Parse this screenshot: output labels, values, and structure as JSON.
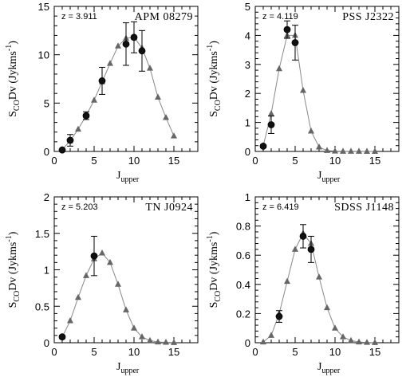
{
  "chart_data": [
    {
      "type": "line",
      "redshift": "z = 3.911",
      "object": "APM 08279",
      "xlabel": "J",
      "xlabel_sub": "upper",
      "ylabel": "S",
      "ylabel_sub": "CO",
      "ylabel_rest": "Dv (Jykms",
      "ylabel_sup": "-1",
      "ylabel_close": ")",
      "xlim": [
        0,
        18
      ],
      "ylim": [
        0,
        15
      ],
      "xticks": [
        0,
        5,
        10,
        15
      ],
      "xtick_labels": [
        "0",
        "5",
        "10",
        "15"
      ],
      "yticks": [
        0,
        5,
        10,
        15
      ],
      "ytick_labels": [
        "0",
        "5",
        "10",
        "15"
      ],
      "series": [
        {
          "kind": "model",
          "x": [
            1,
            2,
            3,
            4,
            5,
            6,
            7,
            8,
            9,
            10,
            11,
            12,
            13,
            14,
            15
          ],
          "y": [
            0.2,
            1.1,
            2.3,
            3.7,
            5.3,
            7.2,
            9.1,
            10.9,
            11.7,
            11.8,
            10.7,
            8.6,
            5.6,
            3.5,
            1.6
          ]
        },
        {
          "kind": "observed",
          "x": [
            1,
            2,
            4,
            6,
            9,
            10,
            11
          ],
          "y": [
            0.15,
            1.15,
            3.7,
            7.3,
            11.1,
            11.8,
            10.4
          ],
          "err": [
            0,
            0.6,
            0.4,
            1.4,
            2.2,
            1.6,
            2.1
          ]
        }
      ]
    },
    {
      "type": "line",
      "redshift": "z = 4.119",
      "object": "PSS J2322",
      "xlabel": "J",
      "xlabel_sub": "upper",
      "ylabel": "S",
      "ylabel_sub": "CO",
      "ylabel_rest": "Dv (Jykms",
      "ylabel_sup": "-1",
      "ylabel_close": ")",
      "xlim": [
        0,
        18
      ],
      "ylim": [
        0,
        5
      ],
      "xticks": [
        0,
        5,
        10,
        15
      ],
      "xtick_labels": [
        "0",
        "5",
        "10",
        "15"
      ],
      "yticks": [
        0,
        1,
        2,
        3,
        4,
        5
      ],
      "ytick_labels": [
        "0",
        "1",
        "2",
        "3",
        "4",
        "5"
      ],
      "series": [
        {
          "kind": "model",
          "x": [
            1,
            2,
            3,
            4,
            5,
            6,
            7,
            8,
            9,
            10,
            11,
            12,
            13,
            14,
            15
          ],
          "y": [
            0.2,
            1.3,
            2.85,
            4.0,
            4.0,
            2.1,
            0.7,
            0.15,
            0.03,
            0.01,
            0.005,
            0.003,
            0.002,
            0.001,
            0.001
          ]
        },
        {
          "kind": "observed",
          "x": [
            1,
            2,
            4,
            5
          ],
          "y": [
            0.18,
            0.92,
            4.2,
            3.75
          ],
          "err": [
            0.05,
            0.3,
            0.3,
            0.6
          ]
        }
      ]
    },
    {
      "type": "line",
      "redshift": "z = 5.203",
      "object": "TN J0924",
      "xlabel": "J",
      "xlabel_sub": "upper",
      "ylabel": "S",
      "ylabel_sub": "CO",
      "ylabel_rest": "Dv (Jykms",
      "ylabel_sup": "-1",
      "ylabel_close": ")",
      "xlim": [
        0,
        18
      ],
      "ylim": [
        0,
        2
      ],
      "xticks": [
        0,
        5,
        10,
        15
      ],
      "xtick_labels": [
        "0",
        "5",
        "10",
        "15"
      ],
      "yticks": [
        0,
        0.5,
        1,
        1.5,
        2
      ],
      "ytick_labels": [
        "0",
        "0.5",
        "1",
        "1.5",
        "2"
      ],
      "series": [
        {
          "kind": "model",
          "x": [
            1,
            2,
            3,
            4,
            5,
            6,
            7,
            8,
            9,
            10,
            11,
            12,
            13,
            14,
            15
          ],
          "y": [
            0.08,
            0.3,
            0.62,
            0.92,
            1.15,
            1.23,
            1.1,
            0.8,
            0.45,
            0.2,
            0.08,
            0.03,
            0.01,
            0.005,
            0.002
          ]
        },
        {
          "kind": "observed",
          "x": [
            1,
            5
          ],
          "y": [
            0.08,
            1.19
          ],
          "err": [
            0.02,
            0.27
          ]
        }
      ]
    },
    {
      "type": "line",
      "redshift": "z = 6.419",
      "object": "SDSS J1148",
      "xlabel": "J",
      "xlabel_sub": "upper",
      "ylabel": "S",
      "ylabel_sub": "CO",
      "ylabel_rest": "Dv (Jykms",
      "ylabel_sup": "-1",
      "ylabel_close": ")",
      "xlim": [
        0,
        18
      ],
      "ylim": [
        0,
        1
      ],
      "xticks": [
        0,
        5,
        10,
        15
      ],
      "xtick_labels": [
        "0",
        "5",
        "10",
        "15"
      ],
      "yticks": [
        0,
        0.2,
        0.4,
        0.6,
        0.8,
        1
      ],
      "ytick_labels": [
        "0",
        "0.2",
        "0.4",
        "0.6",
        "0.8",
        "1"
      ],
      "series": [
        {
          "kind": "model",
          "x": [
            1,
            2,
            3,
            4,
            5,
            6,
            7,
            8,
            9,
            10,
            11,
            12,
            13,
            14,
            15
          ],
          "y": [
            0.005,
            0.05,
            0.2,
            0.42,
            0.64,
            0.75,
            0.68,
            0.45,
            0.24,
            0.1,
            0.04,
            0.015,
            0.005,
            0.002,
            0.001
          ]
        },
        {
          "kind": "observed",
          "x": [
            3,
            6,
            7
          ],
          "y": [
            0.18,
            0.73,
            0.64
          ],
          "err": [
            0.04,
            0.08,
            0.09
          ]
        }
      ]
    }
  ]
}
